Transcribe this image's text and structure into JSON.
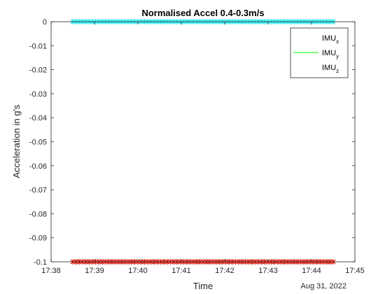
{
  "chart_data": {
    "type": "scatter",
    "title": "Normalised Accel 0.4-0.3m/s",
    "xlabel": "Time",
    "ylabel": "Acceleration in g's",
    "date_label": "Aug 31, 2022",
    "xlim": [
      "17:38",
      "17:45"
    ],
    "ylim": [
      -0.1,
      0
    ],
    "x_ticks": [
      "17:38",
      "17:39",
      "17:40",
      "17:41",
      "17:42",
      "17:43",
      "17:44",
      "17:45"
    ],
    "y_ticks": [
      "0",
      "-0.01",
      "-0.02",
      "-0.03",
      "-0.04",
      "-0.05",
      "-0.06",
      "-0.07",
      "-0.08",
      "-0.09",
      "-0.1"
    ],
    "y_tick_values": [
      0,
      -0.01,
      -0.02,
      -0.03,
      -0.04,
      -0.05,
      -0.06,
      -0.07,
      -0.08,
      -0.09,
      -0.1
    ],
    "grid": false,
    "legend_position": "top-right",
    "series": [
      {
        "name": "IMU",
        "subscript": "x",
        "color": "#0000ff",
        "x_range": [
          "17:38:30",
          "17:44:30"
        ],
        "y": -0.1
      },
      {
        "name": "IMU",
        "subscript": "y",
        "color": "#00ff00",
        "x_range": [
          "17:38:30",
          "17:44:30"
        ],
        "y": -0.1
      },
      {
        "name": "IMU",
        "subscript": "z",
        "color": "#ff0000",
        "x_range": [
          "17:38:30",
          "17:44:30"
        ],
        "y": -0.1
      },
      {
        "name": "",
        "subscript": "",
        "color": "#00e5ee",
        "x_range": [
          "17:38:30",
          "17:44:30"
        ],
        "y": 0
      }
    ]
  }
}
